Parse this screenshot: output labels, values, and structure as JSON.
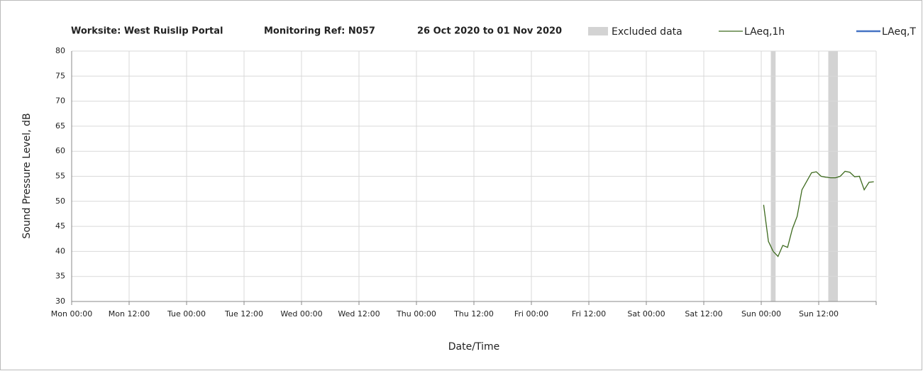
{
  "chart_data": {
    "type": "line",
    "title": "Worksite: West Ruislip Portal",
    "monitoring_ref": "Monitoring Ref: N057",
    "date_range": "26 Oct 2020 to 01 Nov 2020",
    "xlabel": "Date/Time",
    "ylabel": "Sound Pressure Level, dB",
    "xlim": [
      0,
      168
    ],
    "xticks": [
      {
        "value": 0,
        "label": "Mon 00:00"
      },
      {
        "value": 12,
        "label": "Mon 12:00"
      },
      {
        "value": 24,
        "label": "Tue 00:00"
      },
      {
        "value": 36,
        "label": "Tue 12:00"
      },
      {
        "value": 48,
        "label": "Wed 00:00"
      },
      {
        "value": 60,
        "label": "Wed 12:00"
      },
      {
        "value": 72,
        "label": "Thu 00:00"
      },
      {
        "value": 84,
        "label": "Thu 12:00"
      },
      {
        "value": 96,
        "label": "Fri 00:00"
      },
      {
        "value": 108,
        "label": "Fri 12:00"
      },
      {
        "value": 120,
        "label": "Sat 00:00"
      },
      {
        "value": 132,
        "label": "Sat 12:00"
      },
      {
        "value": 144,
        "label": "Sun 00:00"
      },
      {
        "value": 156,
        "label": "Sun 12:00"
      },
      {
        "value": 168,
        "label": ""
      }
    ],
    "ylim": [
      30,
      80
    ],
    "yticks": [
      30,
      35,
      40,
      45,
      50,
      55,
      60,
      65,
      70,
      75,
      80
    ],
    "grid": true,
    "excluded": {
      "name": "Excluded data",
      "color": "#d3d3d3",
      "ranges": [
        [
          146,
          147
        ],
        [
          158,
          160
        ]
      ]
    },
    "x": [
      144.5,
      145.5,
      146.5,
      147.5,
      148.5,
      149.5,
      150.5,
      151.5,
      152.5,
      153.5,
      154.5,
      155.5,
      156.5,
      157.5,
      158.5,
      159.5,
      160.5,
      161.5,
      162.5,
      163.5,
      164.5,
      165.5,
      166.5,
      167.5
    ],
    "series": [
      {
        "name": "LAeq,1h",
        "color": "#3d6a1e",
        "width": 1.3,
        "values": [
          49.3,
          42,
          40,
          39,
          41.2,
          40.8,
          44.5,
          47,
          52.3,
          54,
          55.7,
          55.9,
          55,
          54.8,
          54.7,
          54.7,
          55,
          56,
          55.8,
          54.9,
          55,
          52.3,
          53.8,
          53.9
        ]
      },
      {
        "name": "LAeq,T",
        "color": "#4472c4",
        "width": 2.5,
        "values": [
          null,
          null,
          null,
          null,
          null,
          null,
          null,
          null,
          null,
          null,
          null,
          null,
          null,
          null,
          null,
          null,
          null,
          null,
          null,
          null,
          null,
          null,
          null,
          null
        ]
      }
    ]
  }
}
